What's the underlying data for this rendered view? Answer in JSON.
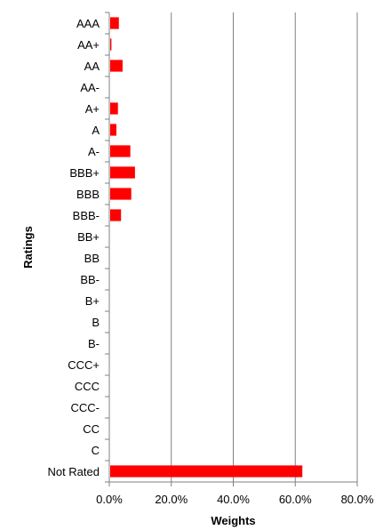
{
  "chart_data": {
    "type": "bar",
    "orientation": "horizontal",
    "categories": [
      "AAA",
      "AA+",
      "AA",
      "AA-",
      "A+",
      "A",
      "A-",
      "BBB+",
      "BBB",
      "BBB-",
      "BB+",
      "BB",
      "BB-",
      "B+",
      "B",
      "B-",
      "CCC+",
      "CCC",
      "CCC-",
      "CC",
      "C",
      "Not Rated"
    ],
    "values": [
      0.028,
      0.004,
      0.04,
      0.0,
      0.025,
      0.02,
      0.065,
      0.08,
      0.068,
      0.035,
      0.0,
      0.0,
      0.0,
      0.0,
      0.0,
      0.0,
      0.0,
      0.0,
      0.0,
      0.0,
      0.0,
      0.62
    ],
    "xlim": [
      0,
      0.8
    ],
    "xticks": [
      0,
      0.2,
      0.4,
      0.6,
      0.8
    ],
    "xtick_labels": [
      "0.0%",
      "20.0%",
      "40.0%",
      "60.0%",
      "80.0%"
    ],
    "title": "",
    "xlabel": "Weights",
    "ylabel": "Ratings",
    "grid": "vertical",
    "legend": "none",
    "colors": {
      "bar": "#ff0000",
      "grid": "#808080",
      "axis": "#808080",
      "text": "#000000"
    }
  }
}
